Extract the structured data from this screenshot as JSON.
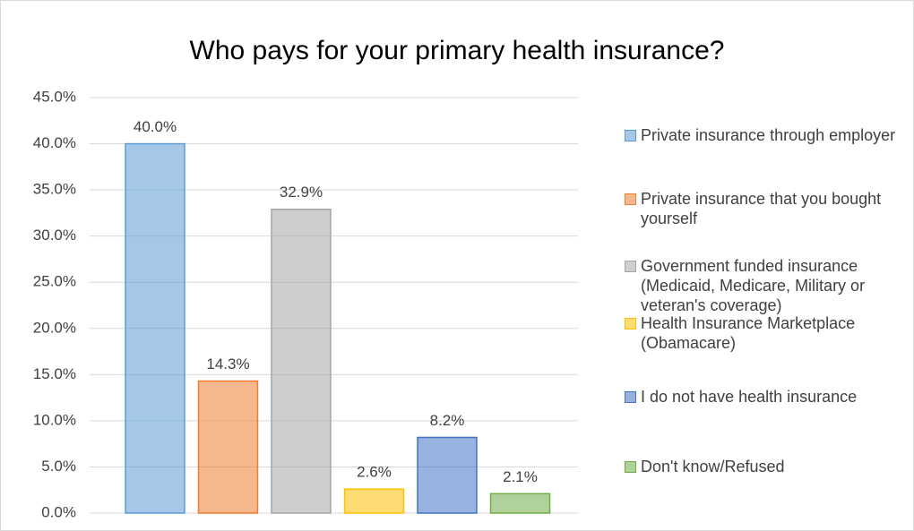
{
  "chart_data": {
    "type": "bar",
    "title": "Who pays for your primary health insurance?",
    "categories": [
      null
    ],
    "series": [
      {
        "name": "Private insurance through employer",
        "color": "#5b9bd5",
        "values": [
          40.0
        ],
        "value_labels": [
          "40.0%"
        ]
      },
      {
        "name": "Private insurance that you bought yourself",
        "color": "#ed7d31",
        "values": [
          14.3
        ],
        "value_labels": [
          "14.3%"
        ]
      },
      {
        "name": "Government funded insurance (Medicaid, Medicare, Military or veteran's coverage)",
        "color": "#a5a5a5",
        "values": [
          32.9
        ],
        "value_labels": [
          "32.9%"
        ]
      },
      {
        "name": "Health Insurance Marketplace (Obamacare)",
        "color": "#ffc000",
        "values": [
          2.6
        ],
        "value_labels": [
          "2.6%"
        ]
      },
      {
        "name": "I do not have health insurance",
        "color": "#4472c4",
        "values": [
          8.2
        ],
        "value_labels": [
          "8.2%"
        ]
      },
      {
        "name": "Don't know/Refused",
        "color": "#70ad47",
        "values": [
          2.1
        ],
        "value_labels": [
          "2.1%"
        ]
      }
    ],
    "ylim": [
      0,
      45
    ],
    "yticks": [
      {
        "value": 0,
        "label": "0.0%"
      },
      {
        "value": 5,
        "label": "5.0%"
      },
      {
        "value": 10,
        "label": "10.0%"
      },
      {
        "value": 15,
        "label": "15.0%"
      },
      {
        "value": 20,
        "label": "20.0%"
      },
      {
        "value": 25,
        "label": "25.0%"
      },
      {
        "value": 30,
        "label": "30.0%"
      },
      {
        "value": 35,
        "label": "35.0%"
      },
      {
        "value": 40,
        "label": "40.0%"
      },
      {
        "value": 45,
        "label": "45.0%"
      }
    ],
    "grid": true,
    "legend": "right"
  }
}
